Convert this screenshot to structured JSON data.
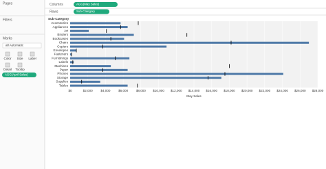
{
  "ui": {
    "pages": "Pages",
    "filters": "Filters",
    "marks": "Marks",
    "mark_type": "all Automatic",
    "mark_buttons": [
      "Color",
      "Size",
      "Label",
      "Detail",
      "Tooltip"
    ],
    "marks_pill": "AGG(April Sales)",
    "columns_label": "Columns",
    "columns_pill": "AGG(May Sales)",
    "rows_label": "Rows",
    "rows_pill": "Sub-Category"
  },
  "chart_data": {
    "type": "bullet",
    "header": "Sub-Category",
    "x_label": "May Sales",
    "categories": [
      "Accessories",
      "Appliances",
      "Art",
      "Binders",
      "Bookcases",
      "Chairs",
      "Copiers",
      "Envelopes",
      "Fasteners",
      "Furnishings",
      "Labels",
      "Machines",
      "Paper",
      "Phones",
      "Storage",
      "Supplies",
      "Tables"
    ],
    "series": [
      {
        "name": "May Sales",
        "color": "#4e79a7",
        "values": [
          5700,
          6500,
          2100,
          7200,
          6100,
          27000,
          10900,
          700,
          150,
          6700,
          400,
          4600,
          6500,
          24100,
          17100,
          3400,
          6500
        ]
      },
      {
        "name": "April Sales",
        "color": "#000000",
        "values": [
          7700,
          5700,
          4100,
          13200,
          4600,
          18200,
          3700,
          700,
          150,
          5100,
          300,
          18000,
          3700,
          17500,
          15600,
          1300,
          7600
        ]
      }
    ],
    "xlim": [
      0,
      28000
    ],
    "xticks": [
      {
        "value": 0,
        "label": "$0"
      },
      {
        "value": 2000,
        "label": "$2,000"
      },
      {
        "value": 4000,
        "label": "$4,000"
      },
      {
        "value": 6000,
        "label": "$6,000"
      },
      {
        "value": 8000,
        "label": "$8,000"
      },
      {
        "value": 10000,
        "label": "$10,000"
      },
      {
        "value": 12000,
        "label": "$12,000"
      },
      {
        "value": 14000,
        "label": "$14,000"
      },
      {
        "value": 16000,
        "label": "$16,000"
      },
      {
        "value": 18000,
        "label": "$18,000"
      },
      {
        "value": 20000,
        "label": "$20,000"
      },
      {
        "value": 22000,
        "label": "$22,000"
      },
      {
        "value": 24000,
        "label": "$24,000"
      },
      {
        "value": 26000,
        "label": "$26,000"
      },
      {
        "value": 28000,
        "label": "$28,000"
      }
    ]
  }
}
